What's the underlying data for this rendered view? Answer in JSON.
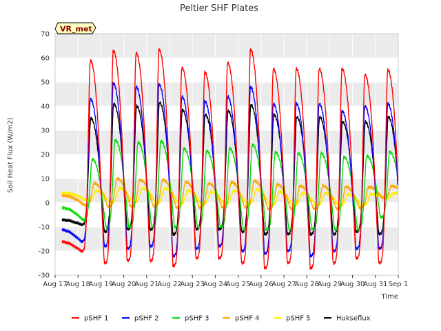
{
  "chart_data": {
    "type": "line",
    "title": "Peltier SHF Plates",
    "xlabel": "Time",
    "ylabel": "Soil Heat Flux (W/m2)",
    "ylim": [
      -30,
      70
    ],
    "yticks": [
      -30,
      -20,
      -10,
      0,
      10,
      20,
      30,
      40,
      50,
      60,
      70
    ],
    "xlim": [
      0,
      15
    ],
    "xtick_labels": [
      "Aug 17",
      "Aug 18",
      "Aug 19",
      "Aug 20",
      "Aug 21",
      "Aug 22",
      "Aug 23",
      "Aug 24",
      "Aug 25",
      "Aug 26",
      "Aug 27",
      "Aug 28",
      "Aug 29",
      "Aug 30",
      "Aug 31",
      "Sep 1"
    ],
    "grid": true,
    "legend_placement": "bottom",
    "badge": "VR_met",
    "background_bands": [
      "#ffffff",
      "#ebebeb"
    ],
    "series": [
      {
        "name": "pSHF 1",
        "color": "#ff0000",
        "daily_min": [
          -16,
          -20,
          -25,
          -24,
          -24,
          -26,
          -23,
          -23,
          -25,
          -27,
          -25,
          -27,
          -25,
          -23,
          -25
        ],
        "daily_max": [
          null,
          59,
          63,
          62,
          63.5,
          56,
          54,
          58,
          63.5,
          55.5,
          55.5,
          55.5,
          55.5,
          53,
          55
        ]
      },
      {
        "name": "pSHF 2",
        "color": "#0000ff",
        "daily_min": [
          -11,
          -16,
          -18,
          -19,
          -18,
          -22,
          -19,
          -18,
          -20,
          -21,
          -20,
          -22,
          -20,
          -19,
          -19
        ],
        "daily_max": [
          null,
          43,
          49.5,
          48,
          49,
          44,
          42,
          44,
          48,
          41,
          41,
          41,
          38,
          40,
          41
        ]
      },
      {
        "name": "pSHF 3",
        "color": "#00dd00",
        "daily_min": [
          -2,
          -7,
          -10,
          -10,
          -10,
          -10,
          -10,
          -10,
          -11,
          -11,
          -11,
          -11,
          -11,
          -11,
          -6
        ],
        "daily_max": [
          null,
          18,
          26,
          25,
          25.5,
          22.5,
          21.5,
          22.5,
          24,
          21,
          20.5,
          20.5,
          19,
          19.5,
          21
        ]
      },
      {
        "name": "pSHF 4",
        "color": "#ffa500",
        "daily_min": [
          3,
          -1,
          -1.5,
          -1.5,
          -1.5,
          -2,
          -2,
          -2,
          -2,
          -2.5,
          -2.5,
          -2.5,
          -2.5,
          -2,
          2
        ],
        "daily_max": [
          null,
          8,
          10,
          9.5,
          9.5,
          8.5,
          8,
          8.5,
          9,
          7.5,
          7,
          7,
          6.5,
          6.5,
          7
        ]
      },
      {
        "name": "pSHF 5",
        "color": "#ffee00",
        "daily_min": [
          4,
          1,
          0,
          0,
          0,
          -0.5,
          -0.5,
          -0.5,
          -0.5,
          -1,
          -1,
          -1,
          -1,
          -1,
          2
        ],
        "daily_max": [
          null,
          5,
          6,
          6,
          6,
          5,
          4.5,
          5,
          5.5,
          4.5,
          4,
          4,
          3.5,
          3.5,
          4
        ]
      },
      {
        "name": "Hukseflux",
        "color": "#000000",
        "daily_min": [
          -7,
          -9,
          -12,
          -11,
          -11,
          -13,
          -11,
          -11,
          -12,
          -13,
          -13,
          -13,
          -13,
          -12,
          -13
        ],
        "daily_max": [
          null,
          35,
          41,
          40,
          41.5,
          38.5,
          36.5,
          38,
          40.5,
          36.5,
          35.5,
          35.5,
          33.5,
          33.5,
          35.5
        ]
      }
    ]
  }
}
